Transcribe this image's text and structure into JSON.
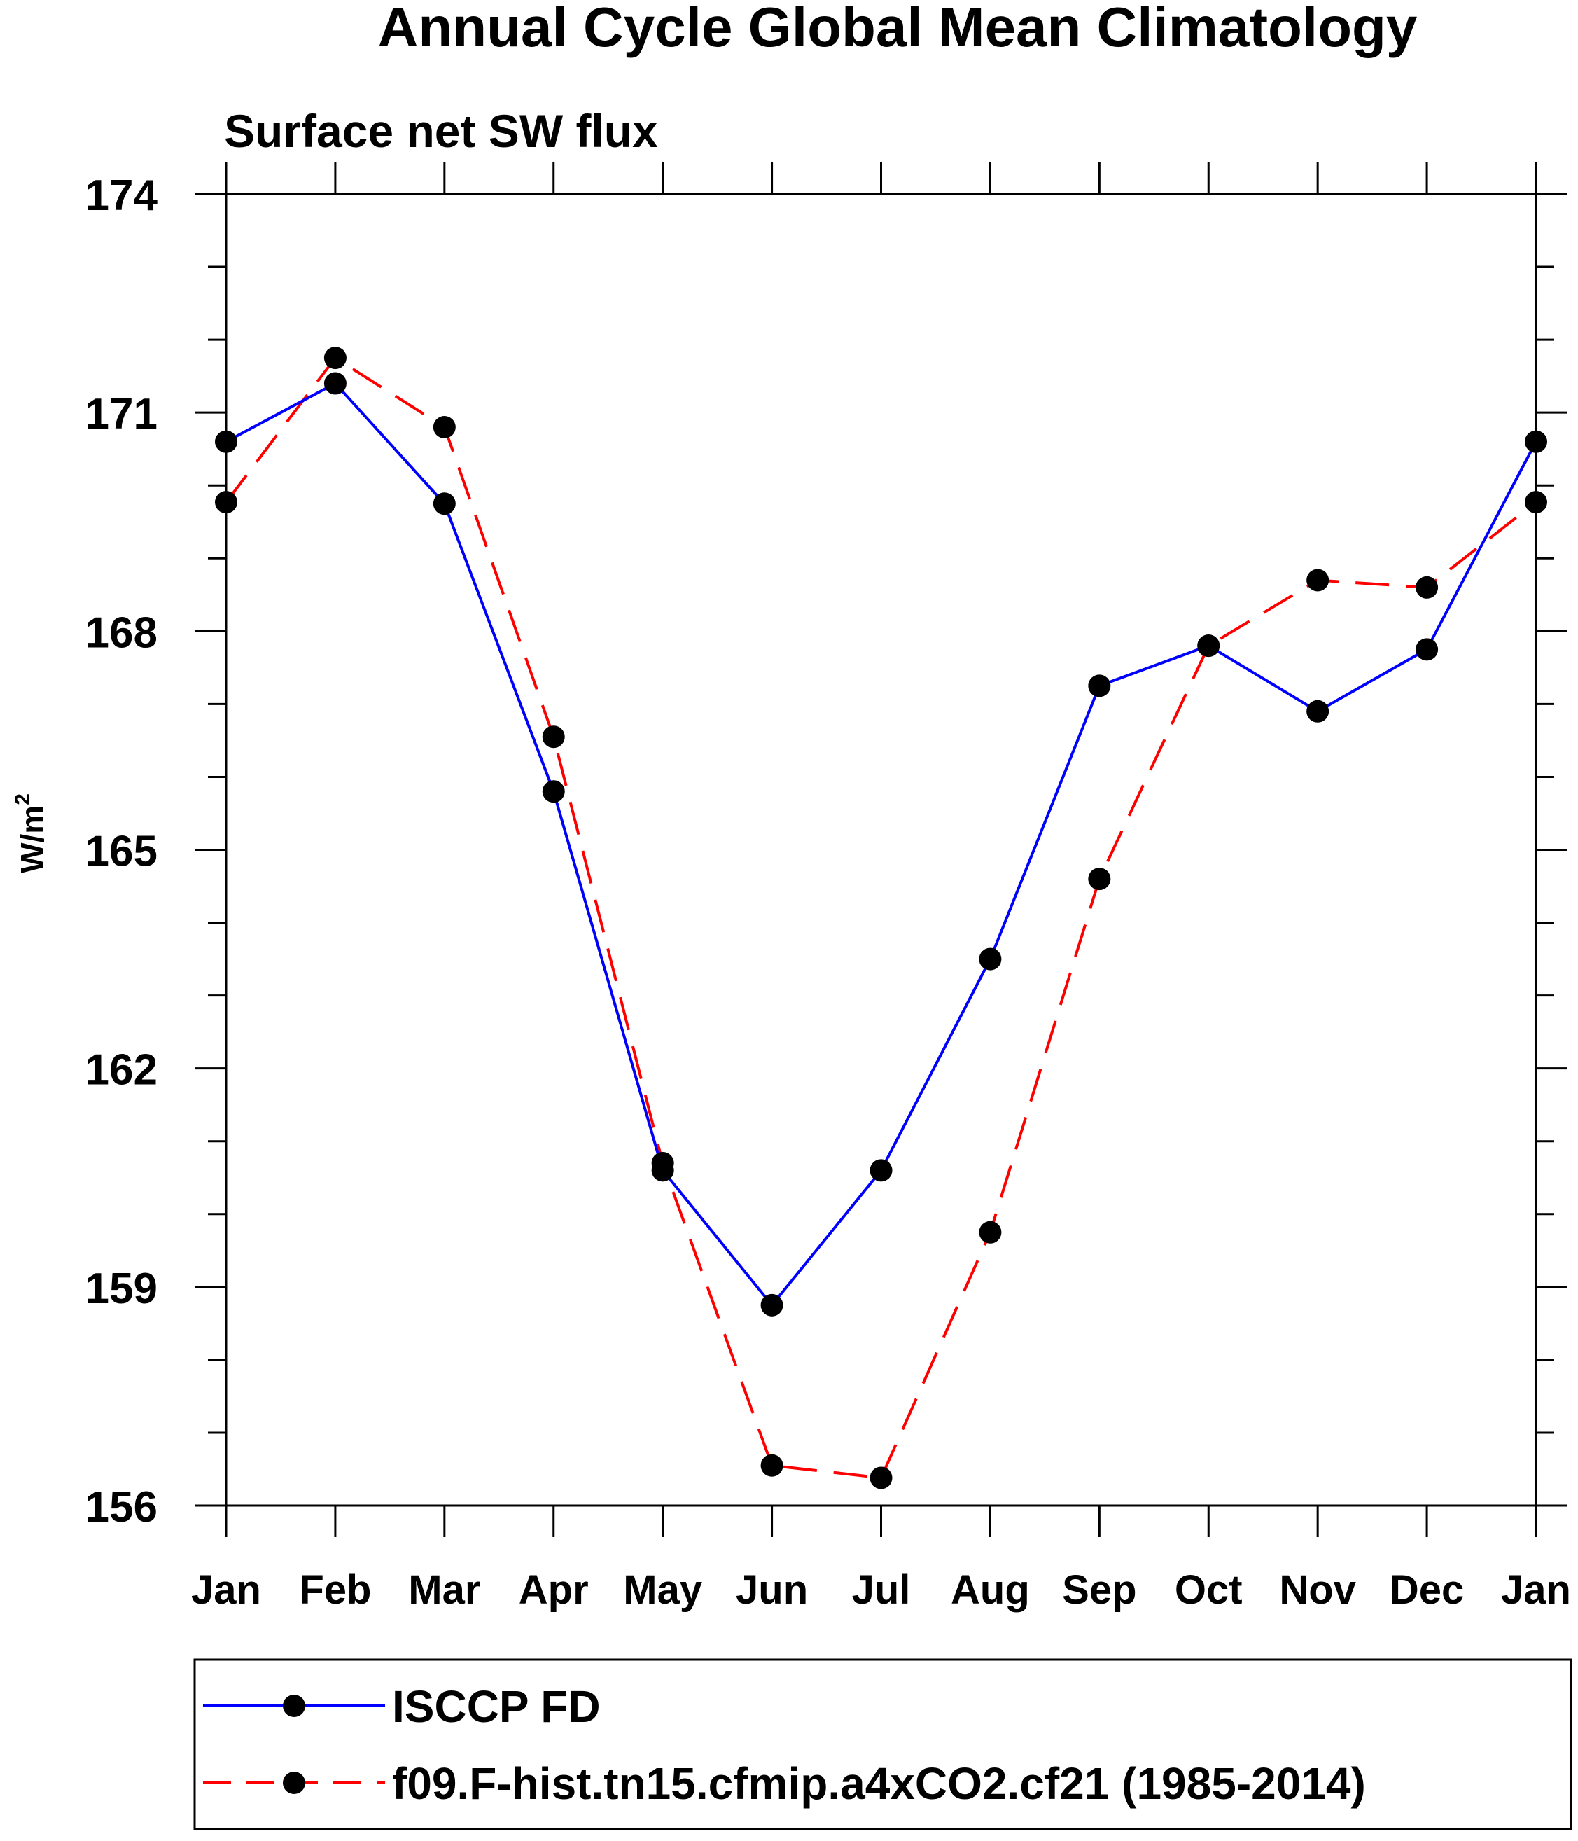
{
  "chart_data": {
    "type": "line",
    "title": "Annual Cycle Global Mean Climatology",
    "subtitle": "Surface net SW flux",
    "xlabel": "",
    "ylabel_base": "W/m",
    "ylabel_superscript": "2",
    "categories": [
      "Jan",
      "Feb",
      "Mar",
      "Apr",
      "May",
      "Jun",
      "Jul",
      "Aug",
      "Sep",
      "Oct",
      "Nov",
      "Dec",
      "Jan"
    ],
    "ylim": [
      156,
      174
    ],
    "yticks": [
      156,
      159,
      162,
      165,
      168,
      171,
      174
    ],
    "grid": false,
    "legend_position": "bottom",
    "series": [
      {
        "name": "ISCCP FD",
        "color": "#0000ff",
        "line_style": "solid",
        "marker": "filled-circle",
        "values": [
          170.6,
          171.4,
          169.75,
          165.8,
          160.6,
          158.75,
          160.6,
          163.5,
          167.25,
          167.8,
          166.9,
          167.75,
          170.6
        ]
      },
      {
        "name": "f09.F-hist.tn15.cfmip.a4xCO2.cf21 (1985-2014)",
        "color": "#ff0000",
        "line_style": "dashed",
        "marker": "filled-circle",
        "values": [
          169.77,
          171.75,
          170.8,
          166.55,
          160.7,
          156.55,
          156.38,
          159.75,
          164.6,
          167.8,
          168.7,
          168.6,
          169.77
        ]
      }
    ]
  }
}
